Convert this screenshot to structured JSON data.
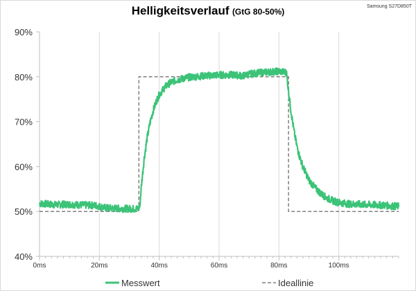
{
  "device": "Samsung S27D850T",
  "colors": {
    "measured": "#3cc378",
    "ideal": "#7f7f7f",
    "axis": "#bfbfbf",
    "grid": "#d9d9d9"
  },
  "chart_data": {
    "type": "line",
    "title": "Helligkeitsverlauf",
    "subtitle": "(GtG 80-50%)",
    "xlabel": "",
    "ylabel": "",
    "x_unit": "ms",
    "y_unit": "%",
    "xlim": [
      0,
      120
    ],
    "ylim": [
      40,
      90
    ],
    "x_ticks": [
      "0ms",
      "20ms",
      "40ms",
      "60ms",
      "80ms",
      "100ms"
    ],
    "x_tick_values": [
      0,
      20,
      40,
      60,
      80,
      100
    ],
    "y_ticks": [
      "40%",
      "50%",
      "60%",
      "70%",
      "80%",
      "90%"
    ],
    "y_tick_values": [
      40,
      50,
      60,
      70,
      80,
      90
    ],
    "grid": "vertical",
    "legend_position": "bottom",
    "series": [
      {
        "name": "Messwert",
        "style": "solid",
        "noise": 0.8,
        "x": [
          0,
          5,
          10,
          15,
          17,
          19,
          22,
          25,
          30,
          33,
          33.5,
          34,
          35,
          36,
          37,
          38,
          39,
          40,
          42,
          44,
          46,
          48,
          50,
          55,
          60,
          65,
          68,
          70,
          75,
          80,
          82.5,
          83,
          84,
          85,
          86,
          87,
          88,
          89,
          90,
          92,
          94,
          96,
          98,
          100,
          103,
          106,
          110,
          115,
          118,
          120
        ],
        "y": [
          51.8,
          51.5,
          51.6,
          51.4,
          51.4,
          51.3,
          50.8,
          50.7,
          50.6,
          50.6,
          51.0,
          55.5,
          62.0,
          66.5,
          70.0,
          72.5,
          74.5,
          76.0,
          77.8,
          78.8,
          79.3,
          79.6,
          79.9,
          80.2,
          80.4,
          80.4,
          80.2,
          80.6,
          81.0,
          81.2,
          81.0,
          78.0,
          72.5,
          68.0,
          64.5,
          62.0,
          60.0,
          58.5,
          57.0,
          55.3,
          54.0,
          53.0,
          52.4,
          52.0,
          51.7,
          51.6,
          51.5,
          51.4,
          51.2,
          51.1
        ]
      },
      {
        "name": "Ideallinie",
        "style": "dashed",
        "x": [
          0,
          33.2,
          33.2,
          83.2,
          83.2,
          120
        ],
        "y": [
          50,
          50,
          80,
          80,
          50,
          50
        ]
      }
    ]
  }
}
